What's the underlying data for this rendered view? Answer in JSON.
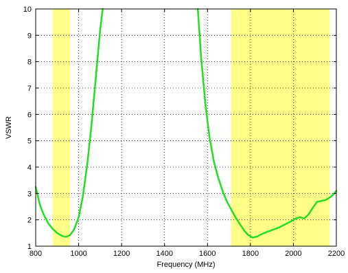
{
  "chart_data": {
    "type": "line",
    "title": "",
    "xlabel": "Frequency (MHz)",
    "ylabel": "VSWR",
    "xlim": [
      800,
      2200
    ],
    "ylim": [
      1,
      10
    ],
    "xticks": [
      800,
      1000,
      1200,
      1400,
      1600,
      1800,
      2000,
      2200
    ],
    "yticks": [
      1,
      2,
      3,
      4,
      5,
      6,
      7,
      8,
      9,
      10
    ],
    "grid": "dotted",
    "shaded_bands": [
      {
        "x_start": 880,
        "x_end": 960,
        "color": "#ffff88"
      },
      {
        "x_start": 1710,
        "x_end": 2170,
        "color": "#ffff88"
      }
    ],
    "series": [
      {
        "color": "#22dd22",
        "segments": [
          {
            "x": [
              800,
              820,
              840,
              860,
              880,
              900,
              920,
              940,
              960,
              980,
              1000,
              1020,
              1040,
              1060,
              1080,
              1100,
              1112
            ],
            "y": [
              3.25,
              2.55,
              2.15,
              1.85,
              1.65,
              1.5,
              1.4,
              1.35,
              1.42,
              1.65,
              2.1,
              2.9,
              4.1,
              5.6,
              7.4,
              9.2,
              10
            ]
          },
          {
            "x": [
              1555,
              1570,
              1590,
              1610,
              1630,
              1650,
              1670,
              1690,
              1710,
              1730,
              1750,
              1770,
              1790,
              1810,
              1830,
              1850,
              1870,
              1890,
              1910,
              1930,
              1950,
              1970,
              1990,
              2010,
              2030,
              2050,
              2070,
              2090,
              2110,
              2130,
              2150,
              2170,
              2185,
              2200
            ],
            "y": [
              10,
              8.2,
              6.4,
              5.1,
              4.2,
              3.6,
              3.1,
              2.7,
              2.4,
              2.1,
              1.85,
              1.6,
              1.42,
              1.33,
              1.36,
              1.45,
              1.52,
              1.58,
              1.64,
              1.7,
              1.78,
              1.86,
              1.95,
              2.05,
              2.1,
              2.05,
              2.2,
              2.45,
              2.68,
              2.72,
              2.75,
              2.85,
              2.95,
              3.1
            ]
          }
        ]
      }
    ]
  }
}
